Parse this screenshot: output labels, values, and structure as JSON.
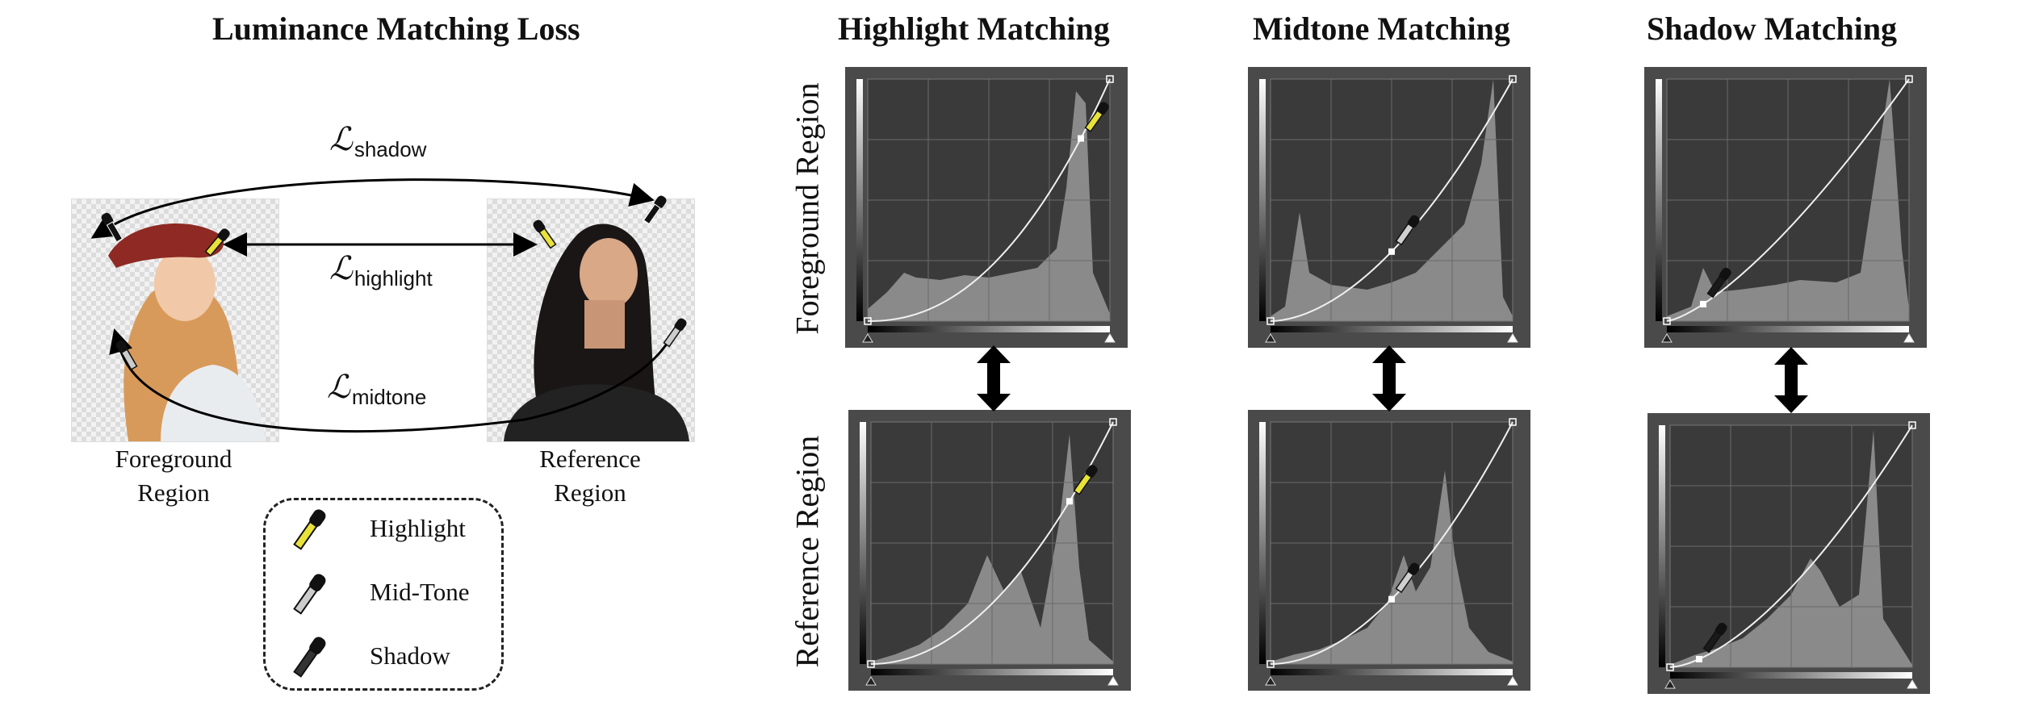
{
  "left_title": "Luminance Matching Loss",
  "column_titles": [
    "Highlight Matching",
    "Midtone Matching",
    "Shadow Matching"
  ],
  "row_labels": [
    "Foreground Region",
    "Reference Region"
  ],
  "regions": {
    "foreground_line1": "Foreground",
    "foreground_line2": "Region",
    "reference_line1": "Reference",
    "reference_line2": "Region"
  },
  "losses": {
    "symbol": "ℒ",
    "shadow": "shadow",
    "highlight": "highlight",
    "midtone": "midtone"
  },
  "legend": [
    {
      "label": "Highlight",
      "icon": "highlight-eyedropper-icon",
      "color": "#e8e23a"
    },
    {
      "label": "Mid-Tone",
      "icon": "midtone-eyedropper-icon",
      "color": "#c8c8c8"
    },
    {
      "label": "Shadow",
      "icon": "shadow-eyedropper-icon",
      "color": "#1a1a1a"
    }
  ],
  "colors": {
    "panel_bg": "#4a4a4a",
    "plot_bg": "#3a3a3a",
    "histogram": "#8a8a8a",
    "curve": "#f0f0f0",
    "highlight": "#e8e23a",
    "midtone": "#d0d0d0",
    "shadow": "#1a1a1a"
  }
}
